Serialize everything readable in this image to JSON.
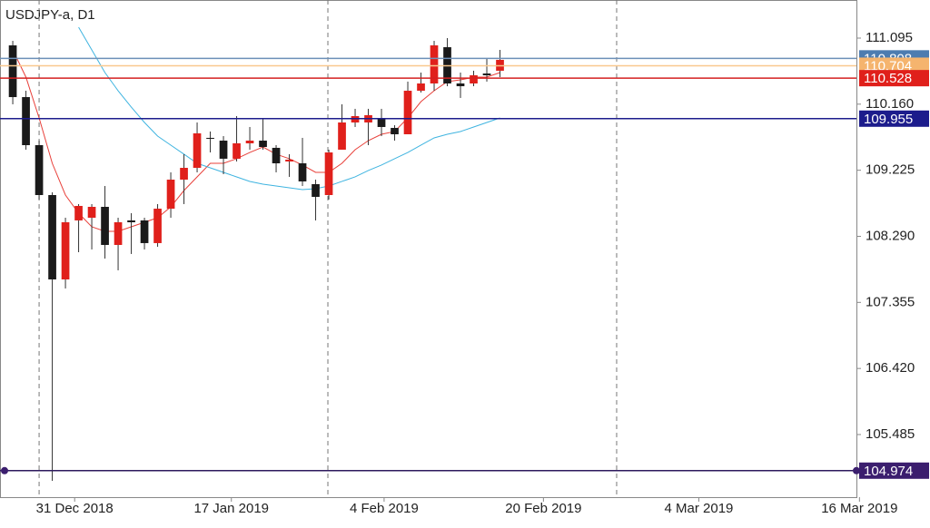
{
  "chart_data": {
    "type": "candlestick",
    "title": "USDJPY-a, D1",
    "up_color": "#e0201b",
    "down_color": "#1a1a1a",
    "xlim": [
      -0.97,
      64.07
    ],
    "ylim": [
      104.599,
      111.634
    ],
    "yticks": [
      111.095,
      {
        "value": 110.16,
        "label": "110.160"
      },
      109.225,
      {
        "value": 108.29,
        "label": "108.290"
      },
      107.355,
      {
        "value": 106.42,
        "label": "106.420"
      },
      105.485
    ],
    "xticks": [
      {
        "value": 4.7,
        "label": "31 Dec 2018"
      },
      {
        "value": 16.6,
        "label": "17 Jan 2019"
      },
      {
        "value": 28.2,
        "label": "4 Feb 2019"
      },
      {
        "value": 40.3,
        "label": "20 Feb 2019"
      },
      {
        "value": 52.1,
        "label": "4 Mar 2019"
      },
      {
        "value": 64.3,
        "label": "16 Mar 2019"
      }
    ],
    "separators": [
      2,
      23.93,
      45.86
    ],
    "open": [
      110.992,
      110.26,
      109.58,
      108.874,
      107.68,
      108.515,
      108.553,
      108.707,
      108.168,
      108.515,
      108.515,
      108.194,
      108.681,
      109.092,
      109.259,
      109.683,
      109.644,
      109.388,
      109.606,
      109.644,
      109.542,
      109.349,
      109.323,
      109.028,
      108.874,
      109.516,
      109.901,
      109.901,
      109.965,
      109.824,
      109.734,
      110.35,
      110.453,
      110.966,
      110.453,
      110.453,
      110.594,
      110.633
    ],
    "close": [
      110.26,
      109.58,
      108.874,
      107.68,
      108.489,
      108.72,
      108.707,
      108.168,
      108.489,
      108.489,
      108.194,
      108.681,
      109.092,
      109.259,
      109.747,
      109.67,
      109.388,
      109.606,
      109.644,
      109.554,
      109.323,
      109.375,
      109.067,
      108.848,
      109.477,
      109.901,
      109.991,
      110.004,
      109.837,
      109.734,
      110.35,
      110.453,
      110.992,
      110.453,
      110.414,
      110.569,
      110.569,
      110.787
    ],
    "high": [
      111.056,
      110.35,
      109.644,
      108.913,
      108.553,
      108.746,
      108.746,
      109.002,
      108.553,
      108.617,
      108.553,
      108.746,
      109.195,
      109.452,
      109.901,
      109.773,
      109.708,
      109.991,
      109.837,
      109.965,
      109.58,
      109.452,
      109.683,
      109.092,
      109.516,
      110.158,
      110.094,
      110.094,
      110.094,
      109.862,
      110.479,
      110.607,
      111.056,
      111.095,
      110.607,
      110.633,
      110.8,
      110.928
    ],
    "low": [
      110.158,
      109.516,
      108.81,
      104.83,
      107.552,
      108.065,
      108.104,
      107.975,
      107.809,
      108.04,
      108.104,
      108.142,
      108.553,
      108.746,
      109.195,
      109.477,
      109.169,
      109.349,
      109.516,
      109.516,
      109.195,
      109.131,
      109.002,
      108.515,
      108.81,
      109.516,
      109.837,
      109.58,
      109.708,
      109.644,
      109.734,
      110.325,
      110.35,
      110.414,
      110.248,
      110.414,
      110.479,
      110.543
    ],
    "lines": [
      {
        "color": "#e8403a",
        "values": [
          110.928,
          110.543,
          109.965,
          109.323,
          108.874,
          108.617,
          108.425,
          108.361,
          108.361,
          108.425,
          108.489,
          108.553,
          108.707,
          108.938,
          109.131,
          109.323,
          109.323,
          109.388,
          109.477,
          109.554,
          109.452,
          109.388,
          109.298,
          109.195,
          109.195,
          109.323,
          109.516,
          109.644,
          109.734,
          109.773,
          109.965,
          110.196,
          110.35,
          110.479,
          110.504,
          110.543,
          110.543,
          110.607
        ]
      },
      {
        "color": "#3fb4e0",
        "values": [
          null,
          null,
          null,
          null,
          null,
          111.249,
          110.928,
          110.607,
          110.35,
          110.119,
          109.901,
          109.708,
          109.58,
          109.452,
          109.323,
          109.259,
          109.195,
          109.131,
          109.067,
          109.028,
          109.002,
          108.977,
          108.951,
          108.964,
          109.002,
          109.067,
          109.131,
          109.221,
          109.298,
          109.388,
          109.477,
          109.58,
          109.683,
          109.734,
          109.773,
          109.837,
          109.901,
          109.965
        ]
      }
    ],
    "levels": [
      {
        "value": 110.808,
        "line_color": "#6d90b8",
        "label_color": "#4d7cb0"
      },
      {
        "value": 110.704,
        "line_color": "#f9c88e",
        "label_color": "#f5b46e"
      },
      {
        "value": 110.528,
        "line_color": "#d42020",
        "label_color": "#e0201b"
      },
      {
        "value": 109.955,
        "line_color": "#1c1c8c",
        "label_color": "#1c1c8c"
      },
      {
        "value": 104.974,
        "line_color": "#2e1a5e",
        "label_color": "#3b1e6e"
      }
    ]
  }
}
